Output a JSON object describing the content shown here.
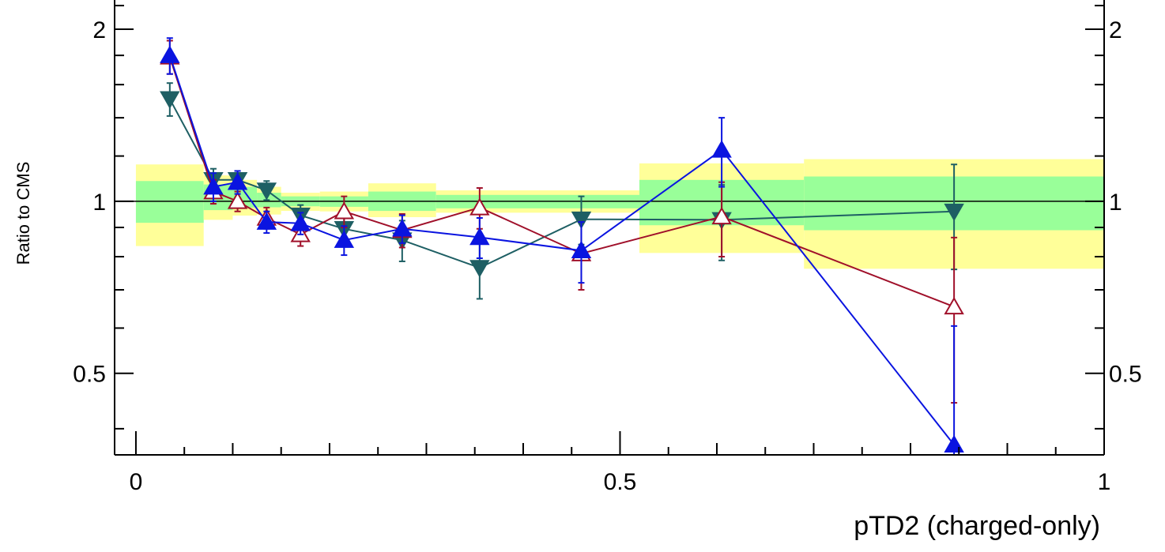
{
  "chart_data": {
    "type": "line",
    "xlabel": "pTD2 (charged-only)",
    "ylabel": "Ratio to CMS",
    "xlim": [
      -0.022,
      1.0
    ],
    "ylim": [
      0.36,
      2.25
    ],
    "y_scale": "log",
    "x_tick_labels": [
      "0",
      "0.5",
      "1"
    ],
    "x_tick_values": [
      0,
      0.5,
      1
    ],
    "y_tick_labels": [
      "0.5",
      "1",
      "2"
    ],
    "y_tick_values": [
      0.5,
      1,
      2
    ],
    "reference_line": 1,
    "uncertainty_bands": [
      {
        "x_low": 0.0,
        "x_high": 0.07,
        "inner": [
          0.917,
          1.085
        ],
        "outer": [
          0.835,
          1.16
        ]
      },
      {
        "x_low": 0.07,
        "x_high": 0.1,
        "inner": [
          0.965,
          1.07
        ],
        "outer": [
          0.928,
          1.11
        ]
      },
      {
        "x_low": 0.1,
        "x_high": 0.125,
        "inner": [
          0.975,
          1.06
        ],
        "outer": [
          0.944,
          1.09
        ]
      },
      {
        "x_low": 0.125,
        "x_high": 0.15,
        "inner": [
          0.976,
          1.035
        ],
        "outer": [
          0.948,
          1.06
        ]
      },
      {
        "x_low": 0.15,
        "x_high": 0.19,
        "inner": [
          0.98,
          1.02
        ],
        "outer": [
          0.962,
          1.035
        ]
      },
      {
        "x_low": 0.19,
        "x_high": 0.24,
        "inner": [
          0.978,
          1.02
        ],
        "outer": [
          0.96,
          1.04
        ]
      },
      {
        "x_low": 0.24,
        "x_high": 0.31,
        "inner": [
          0.962,
          1.04
        ],
        "outer": [
          0.938,
          1.075
        ]
      },
      {
        "x_low": 0.31,
        "x_high": 0.52,
        "inner": [
          0.972,
          1.026
        ],
        "outer": [
          0.955,
          1.045
        ]
      },
      {
        "x_low": 0.52,
        "x_high": 0.69,
        "inner": [
          0.908,
          1.09
        ],
        "outer": [
          0.812,
          1.165
        ]
      },
      {
        "x_low": 0.69,
        "x_high": 1.0,
        "inner": [
          0.89,
          1.105
        ],
        "outer": [
          0.762,
          1.185
        ]
      }
    ],
    "series": [
      {
        "marker": "filled-triangle-down",
        "color": "#1e5f64",
        "x": [
          0.035,
          0.08,
          0.105,
          0.135,
          0.17,
          0.215,
          0.275,
          0.355,
          0.46,
          0.605,
          0.845
        ],
        "y": [
          1.51,
          1.09,
          1.09,
          1.045,
          0.945,
          0.895,
          0.855,
          0.765,
          0.93,
          0.928,
          0.96
        ],
        "err": [
          0.1,
          0.05,
          0.04,
          0.04,
          0.04,
          0.04,
          0.07,
          0.09,
          0.09,
          0.14,
          0.2
        ]
      },
      {
        "marker": "open-triangle-up",
        "color": "#a0102a",
        "x": [
          0.035,
          0.08,
          0.105,
          0.135,
          0.17,
          0.215,
          0.275,
          0.355,
          0.46,
          0.605,
          0.845
        ],
        "y": [
          1.79,
          1.04,
          1.0,
          0.935,
          0.875,
          0.96,
          0.89,
          0.975,
          0.81,
          0.94,
          0.654
        ],
        "err": [
          0.12,
          0.05,
          0.04,
          0.04,
          0.04,
          0.06,
          0.06,
          0.08,
          0.11,
          0.14,
          0.21
        ]
      },
      {
        "marker": "filled-triangle-up",
        "color": "#0a14e0",
        "x": [
          0.035,
          0.08,
          0.105,
          0.135,
          0.17,
          0.215,
          0.275,
          0.355,
          0.46,
          0.605,
          0.845
        ],
        "y": [
          1.8,
          1.06,
          1.08,
          0.92,
          0.915,
          0.855,
          0.895,
          0.865,
          0.82,
          1.23,
          0.375
        ],
        "err": [
          0.13,
          0.06,
          0.05,
          0.04,
          0.04,
          0.05,
          0.05,
          0.07,
          0.1,
          0.17,
          0.23
        ]
      }
    ]
  }
}
